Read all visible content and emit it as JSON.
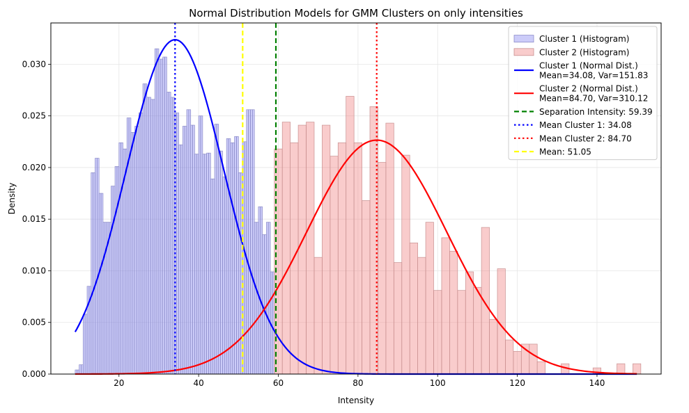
{
  "chart_data": {
    "type": "bar",
    "title": "Normal Distribution Models for GMM Clusters on only intensities",
    "xlabel": "Intensity",
    "ylabel": "Density",
    "xlim": [
      2.9,
      156.1
    ],
    "ylim": [
      0.0,
      0.034
    ],
    "grid": true,
    "x_ticks": [
      20,
      40,
      60,
      80,
      100,
      120,
      140
    ],
    "y_ticks": [
      0.0,
      0.005,
      0.01,
      0.015,
      0.02,
      0.025,
      0.03
    ],
    "legend_position": "top-right",
    "series": [
      {
        "name": "Cluster 1 (Histogram)",
        "kind": "histogram",
        "color": "#8080f0",
        "edge": "#8c8cc8",
        "bin_width": 0.5,
        "x": [
          9.0,
          9.5,
          10.0,
          10.5,
          11.0,
          11.5,
          12.0,
          12.5,
          13.0,
          13.5,
          14.0,
          14.5,
          15.0,
          15.5,
          16.0,
          16.5,
          17.0,
          17.5,
          18.0,
          18.5,
          19.0,
          19.5,
          20.0,
          20.5,
          21.0,
          21.5,
          22.0,
          22.5,
          23.0,
          23.5,
          24.0,
          24.5,
          25.0,
          25.5,
          26.0,
          26.5,
          27.0,
          27.5,
          28.0,
          28.5,
          29.0,
          29.5,
          30.0,
          30.5,
          31.0,
          31.5,
          32.0,
          32.5,
          33.0,
          33.5,
          34.0,
          34.5,
          35.0,
          35.5,
          36.0,
          36.5,
          37.0,
          37.5,
          38.0,
          38.5,
          39.0,
          39.5,
          40.0,
          40.5,
          41.0,
          41.5,
          42.0,
          42.5,
          43.0,
          43.5,
          44.0,
          44.5,
          45.0,
          45.5,
          46.0,
          46.5,
          47.0,
          47.5,
          48.0,
          48.5,
          49.0,
          49.5,
          50.0,
          50.5,
          51.0,
          51.5,
          52.0,
          52.5,
          53.0,
          53.5,
          54.0,
          54.5,
          55.0,
          55.5,
          56.0,
          56.5,
          57.0,
          57.5,
          58.0,
          58.5
        ],
        "values": [
          0.0004,
          0.0004,
          0.0009,
          0.0009,
          0.0058,
          0.0058,
          0.0085,
          0.0085,
          0.0195,
          0.0195,
          0.0209,
          0.0209,
          0.0175,
          0.0175,
          0.0147,
          0.0147,
          0.0147,
          0.0147,
          0.0182,
          0.0182,
          0.0201,
          0.0201,
          0.0224,
          0.0224,
          0.0218,
          0.0218,
          0.0248,
          0.0248,
          0.0234,
          0.0234,
          0.024,
          0.024,
          0.0253,
          0.0253,
          0.0281,
          0.0281,
          0.0268,
          0.0268,
          0.0266,
          0.0266,
          0.0315,
          0.0315,
          0.0305,
          0.0305,
          0.0307,
          0.0307,
          0.0273,
          0.0273,
          0.0268,
          0.0268,
          0.0253,
          0.0253,
          0.0222,
          0.0222,
          0.024,
          0.024,
          0.0256,
          0.0256,
          0.0241,
          0.0241,
          0.0213,
          0.0213,
          0.025,
          0.025,
          0.0213,
          0.0213,
          0.0214,
          0.0214,
          0.0189,
          0.0189,
          0.0242,
          0.0242,
          0.0216,
          0.0216,
          0.0191,
          0.0191,
          0.0228,
          0.0228,
          0.0224,
          0.0224,
          0.023,
          0.023,
          0.0195,
          0.0195,
          0.0225,
          0.0225,
          0.0256,
          0.0256,
          0.0256,
          0.0256,
          0.0147,
          0.0147,
          0.0162,
          0.0162,
          0.0135,
          0.0135,
          0.0147,
          0.0147,
          0.0099,
          0.0099
        ]
      },
      {
        "name": "Cluster 2 (Histogram)",
        "kind": "histogram",
        "color": "#f08080",
        "edge": "#c89090",
        "bin_width": 2.0,
        "x": [
          59.0,
          61.0,
          63.0,
          65.0,
          67.0,
          69.0,
          71.0,
          73.0,
          75.0,
          77.0,
          79.0,
          81.0,
          83.0,
          85.0,
          87.0,
          89.0,
          91.0,
          93.0,
          95.0,
          97.0,
          99.0,
          101.0,
          103.0,
          105.0,
          107.0,
          109.0,
          111.0,
          113.0,
          115.0,
          117.0,
          119.0,
          121.0,
          123.0,
          125.0,
          127.0,
          129.0,
          131.0,
          133.0,
          135.0,
          137.0,
          139.0,
          141.0,
          143.0,
          145.0,
          147.0,
          149.0
        ],
        "values": [
          0.0218,
          0.0244,
          0.0224,
          0.0241,
          0.0244,
          0.0113,
          0.0241,
          0.0211,
          0.0224,
          0.0269,
          0.0224,
          0.0168,
          0.0259,
          0.0205,
          0.0243,
          0.0108,
          0.0212,
          0.0127,
          0.0113,
          0.0147,
          0.0081,
          0.0132,
          0.0119,
          0.0081,
          0.0099,
          0.0084,
          0.0142,
          0.0053,
          0.0102,
          0.0033,
          0.0022,
          0.0029,
          0.0029,
          0.0012,
          0.0,
          0.0,
          0.001,
          0.0,
          0.0,
          0.0,
          0.0006,
          0.0,
          0.0,
          0.001,
          0.0,
          0.001
        ]
      },
      {
        "name": "Cluster 1 (Normal Dist.)\nMean=34.08, Var=151.83",
        "kind": "normal_pdf",
        "color": "#0000ff",
        "mean": 34.08,
        "var": 151.83,
        "x_range": [
          9,
          150
        ]
      },
      {
        "name": "Cluster 2 (Normal Dist.)\nMean=84.70, Var=310.12",
        "kind": "normal_pdf",
        "color": "#ff0000",
        "mean": 84.7,
        "var": 310.12,
        "x_range": [
          9,
          150
        ]
      }
    ],
    "vlines": [
      {
        "name": "Separation Intensity: 59.39",
        "x": 59.39,
        "color": "#008000",
        "style": "dashed"
      },
      {
        "name": "Mean Cluster 1: 34.08",
        "x": 34.08,
        "color": "#0000ff",
        "style": "dotted"
      },
      {
        "name": "Mean Cluster 2: 84.70",
        "x": 84.7,
        "color": "#ff0000",
        "style": "dotted"
      },
      {
        "name": "Mean: 51.05",
        "x": 51.05,
        "color": "#ffff00",
        "style": "dashed"
      }
    ]
  }
}
